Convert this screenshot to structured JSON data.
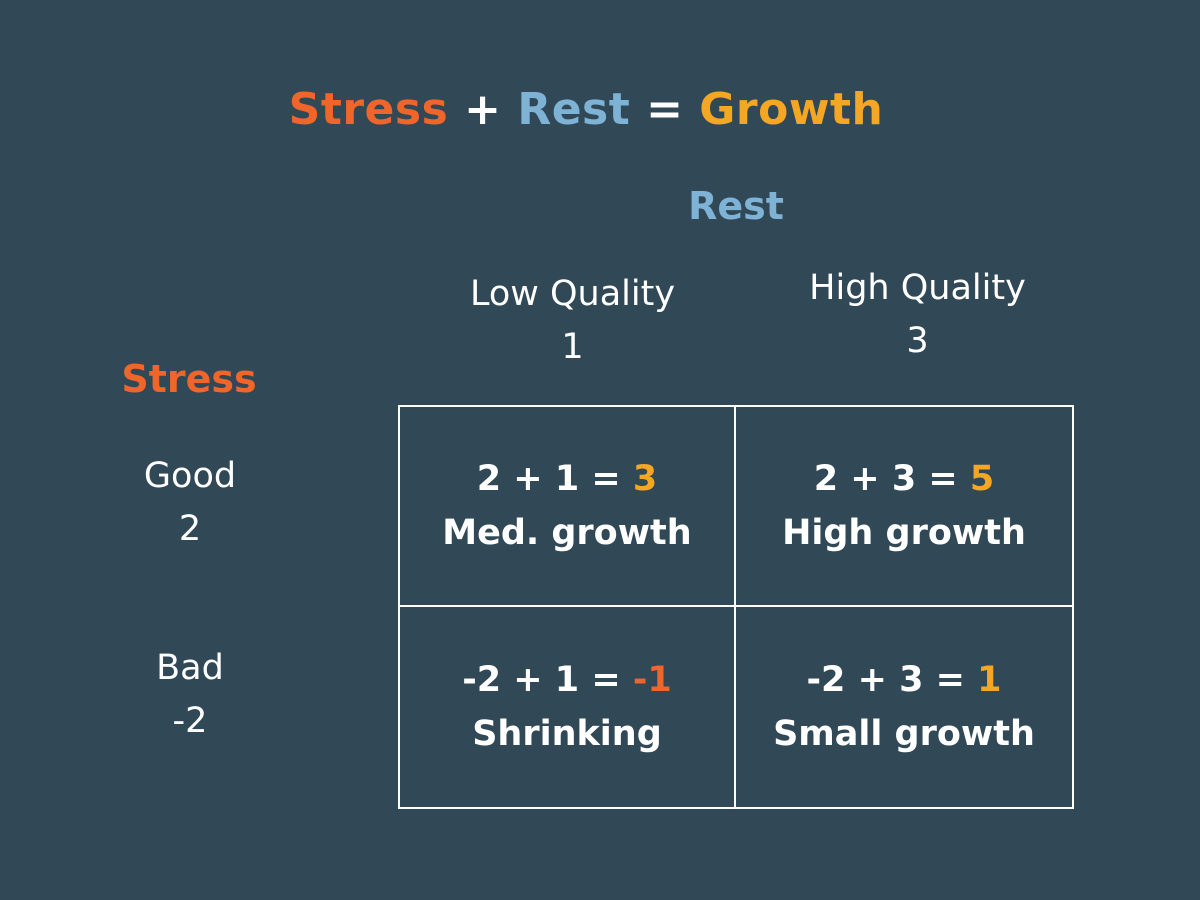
{
  "title": {
    "stress": "Stress",
    "plus": "+",
    "rest": "Rest",
    "equals": "=",
    "growth": "Growth"
  },
  "rest_axis": {
    "label": "Rest",
    "columns": [
      {
        "label": "Low Quality",
        "value": "1"
      },
      {
        "label": "High Quality",
        "value": "3"
      }
    ]
  },
  "stress_axis": {
    "label": "Stress",
    "rows": [
      {
        "label": "Good",
        "value": "2"
      },
      {
        "label": "Bad",
        "value": "-2"
      }
    ]
  },
  "cells": [
    {
      "equation": "2 + 1 = ",
      "result": "3",
      "outcome": "Med. growth",
      "result_color": "#f5a623"
    },
    {
      "equation": "2 + 3 = ",
      "result": "5",
      "outcome": "High growth",
      "result_color": "#f5a623"
    },
    {
      "equation": "-2 + 1 = ",
      "result": "-1",
      "outcome": "Shrinking",
      "result_color": "#f0652a"
    },
    {
      "equation": "-2 + 3 = ",
      "result": "1",
      "outcome": "Small growth",
      "result_color": "#f5a623"
    }
  ],
  "colors": {
    "background": "#314857",
    "stress": "#f0652a",
    "rest": "#7fb3d5",
    "growth": "#f5a623",
    "text": "#ffffff"
  }
}
